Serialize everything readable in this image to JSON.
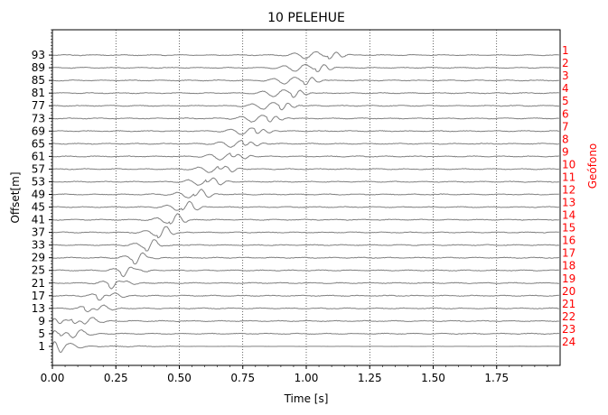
{
  "chart_data": {
    "type": "line",
    "title": "10 PELEHUE",
    "xlabel": "Time [s]",
    "ylabel": "Offset[m]",
    "right_label": "Geófono",
    "xlim": [
      0,
      2.0
    ],
    "ylim": [
      -5,
      101
    ],
    "xticks": [
      0.0,
      0.25,
      0.5,
      0.75,
      1.0,
      1.25,
      1.5,
      1.75
    ],
    "xtick_labels": [
      "0.00",
      "0.25",
      "0.50",
      "0.75",
      "1.00",
      "1.25",
      "1.50",
      "1.75"
    ],
    "offsets": [
      93,
      89,
      85,
      81,
      77,
      73,
      69,
      65,
      61,
      57,
      53,
      49,
      45,
      41,
      37,
      33,
      29,
      25,
      21,
      17,
      13,
      9,
      5,
      1
    ],
    "offset_labels": [
      "93",
      "89",
      "85",
      "81",
      "77",
      "73",
      "69",
      "65",
      "61",
      "57",
      "53",
      "49",
      "45",
      "41",
      "37",
      "33",
      "29",
      "25",
      "21",
      "17",
      "13",
      "9",
      "5",
      "1"
    ],
    "geophones": [
      "1",
      "2",
      "3",
      "4",
      "5",
      "6",
      "7",
      "8",
      "9",
      "10",
      "11",
      "12",
      "13",
      "14",
      "15",
      "16",
      "17",
      "18",
      "19",
      "20",
      "21",
      "22",
      "23",
      "24"
    ],
    "vertical_gridlines": [
      0.25,
      0.5,
      0.75,
      1.0,
      1.25,
      1.5,
      1.75
    ],
    "colors": {
      "trace": "#808080",
      "geophone": "#ff0000",
      "grid": "#000000"
    }
  }
}
